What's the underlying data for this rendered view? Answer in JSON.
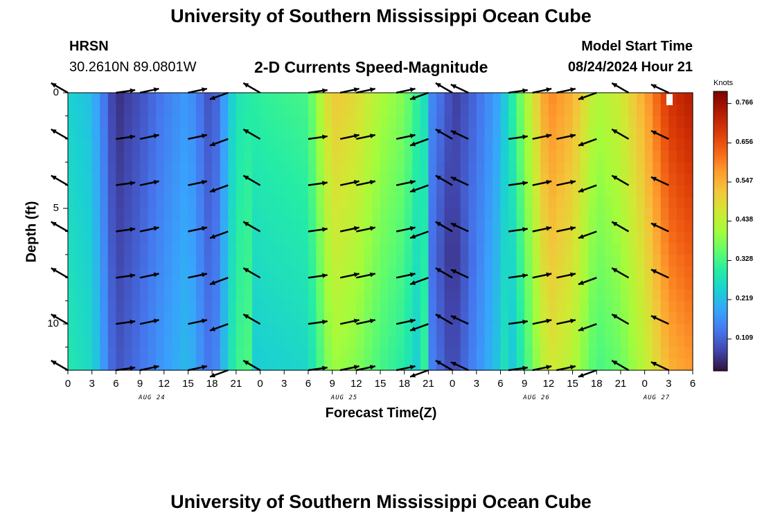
{
  "header": {
    "title": "University of Southern Mississippi Ocean Cube",
    "station": "HRSN",
    "coords": "30.2610N  89.0801W",
    "subtitle": "2-D Currents Speed-Magnitude",
    "model_start_label": "Model Start Time",
    "model_start_value": "08/24/2024 Hour 21",
    "footer_title": "University of Southern Mississippi Ocean Cube"
  },
  "chart_data": {
    "type": "heatmap",
    "title": "2-D Currents Speed-Magnitude",
    "xlabel": "Forecast Time(Z)",
    "ylabel": "Depth (ft)",
    "x_tick_labels": [
      "0",
      "3",
      "6",
      "9",
      "12",
      "15",
      "18",
      "21",
      "0",
      "3",
      "6",
      "9",
      "12",
      "15",
      "18",
      "21",
      "0",
      "3",
      "6",
      "9",
      "12",
      "15",
      "18",
      "21",
      "0",
      "3",
      "6"
    ],
    "x_range_hours": [
      0,
      78
    ],
    "date_labels": [
      {
        "text": "AUG 24",
        "hour": 10.5
      },
      {
        "text": "AUG 25",
        "hour": 34.5
      },
      {
        "text": "AUG 26",
        "hour": 58.5
      },
      {
        "text": "AUG 27",
        "hour": 73.5
      }
    ],
    "y_tick_labels": [
      "0",
      "5",
      "10"
    ],
    "y_tick_values": [
      0,
      5,
      10
    ],
    "y_range": [
      0,
      12
    ],
    "y_inverted": true,
    "colorbar": {
      "unit": "Knots",
      "ticks": [
        "0.766",
        "0.656",
        "0.547",
        "0.438",
        "0.328",
        "0.219",
        "0.109"
      ],
      "tick_values": [
        0.766,
        0.656,
        0.547,
        0.438,
        0.328,
        0.219,
        0.109
      ],
      "range": [
        0.02,
        0.8
      ]
    },
    "speed_profile_hours": [
      0,
      3,
      6,
      9,
      12,
      15,
      18,
      21,
      24,
      27,
      30,
      33,
      36,
      39,
      42,
      45,
      48,
      51,
      54,
      57,
      60,
      63,
      66,
      69,
      72,
      75,
      78
    ],
    "speed_profile_knots": [
      0.25,
      0.22,
      0.05,
      0.09,
      0.14,
      0.18,
      0.08,
      0.28,
      0.31,
      0.32,
      0.33,
      0.52,
      0.49,
      0.42,
      0.38,
      0.25,
      0.06,
      0.12,
      0.2,
      0.4,
      0.6,
      0.55,
      0.42,
      0.46,
      0.56,
      0.7,
      0.74
    ],
    "vector_hours": [
      0,
      6,
      9,
      15,
      20,
      24,
      30,
      34,
      36,
      41,
      45,
      48,
      50,
      55,
      58,
      61,
      66,
      70,
      75
    ],
    "vector_depths": [
      0,
      2,
      4,
      6,
      8,
      10,
      12
    ]
  },
  "colors": {
    "colormap": [
      "#30123b",
      "#4145ab",
      "#4675ed",
      "#39a2fc",
      "#1bcfd4",
      "#24eca6",
      "#61fc6c",
      "#a4fc3b",
      "#d1e834",
      "#f3c63a",
      "#fe9b2d",
      "#f36315",
      "#d93806",
      "#b11901",
      "#7a0402"
    ],
    "arrow": "#000000",
    "marker": "#ffffff"
  }
}
